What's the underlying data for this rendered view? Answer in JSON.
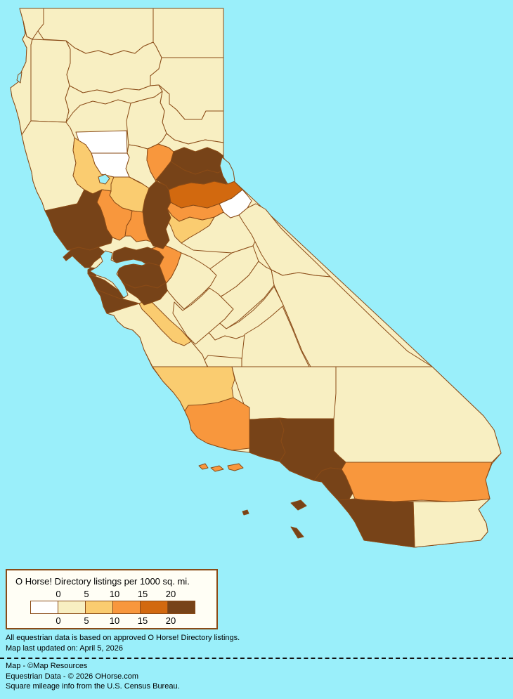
{
  "page": {
    "background": "#9AEFFA"
  },
  "legend": {
    "title": "O Horse! Directory listings per 1000 sq. mi.",
    "breaks": [
      "0",
      "5",
      "10",
      "15",
      "20"
    ],
    "colors": [
      "#FFFFFF",
      "#F8EFC2",
      "#FACC70",
      "#F8973D",
      "#D2690F",
      "#774318"
    ],
    "border_color": "#8A4B17"
  },
  "map": {
    "ocean_color": "#9AEFFA",
    "line_color": "#8A4B17",
    "base_fill": "#F8EFC2",
    "counties": [
      {
        "id": "del-norte",
        "name": "Del Norte",
        "level": 1
      },
      {
        "id": "siskiyou",
        "name": "Siskiyou",
        "level": 1
      },
      {
        "id": "modoc",
        "name": "Modoc",
        "level": 1
      },
      {
        "id": "humboldt",
        "name": "Humboldt",
        "level": 1
      },
      {
        "id": "trinity",
        "name": "Trinity",
        "level": 1
      },
      {
        "id": "shasta",
        "name": "Shasta",
        "level": 1
      },
      {
        "id": "lassen",
        "name": "Lassen",
        "level": 1
      },
      {
        "id": "tehama",
        "name": "Tehama",
        "level": 1
      },
      {
        "id": "plumas",
        "name": "Plumas",
        "level": 1
      },
      {
        "id": "butte",
        "name": "Butte",
        "level": 1
      },
      {
        "id": "mendocino",
        "name": "Mendocino",
        "level": 1
      },
      {
        "id": "sutter",
        "name": "Sutter",
        "level": 1
      },
      {
        "id": "sierra",
        "name": "Sierra",
        "level": 1
      },
      {
        "id": "tuolumne",
        "name": "Tuolumne",
        "level": 1
      },
      {
        "id": "mono",
        "name": "Mono",
        "level": 1
      },
      {
        "id": "inyo",
        "name": "Inyo",
        "level": 1
      },
      {
        "id": "mariposa",
        "name": "Mariposa",
        "level": 1
      },
      {
        "id": "madera",
        "name": "Madera",
        "level": 1
      },
      {
        "id": "fresno",
        "name": "Fresno",
        "level": 1
      },
      {
        "id": "kings",
        "name": "Kings",
        "level": 1
      },
      {
        "id": "tulare",
        "name": "Tulare",
        "level": 1
      },
      {
        "id": "kern",
        "name": "Kern",
        "level": 1
      },
      {
        "id": "san-bernardino",
        "name": "San Bernardino",
        "level": 1
      },
      {
        "id": "monterey",
        "name": "Monterey",
        "level": 1
      },
      {
        "id": "imperial",
        "name": "Imperial",
        "level": 1
      },
      {
        "id": "stanislaus",
        "name": "Stanislaus",
        "level": 1
      },
      {
        "id": "merced",
        "name": "Merced",
        "level": 1
      },
      {
        "id": "glenn",
        "name": "Glenn",
        "level": 0
      },
      {
        "id": "colusa",
        "name": "Colusa",
        "level": 0
      },
      {
        "id": "alpine",
        "name": "Alpine",
        "level": 0
      },
      {
        "id": "lake",
        "name": "Lake",
        "level": 2
      },
      {
        "id": "yolo",
        "name": "Yolo",
        "level": 2
      },
      {
        "id": "calaveras",
        "name": "Calaveras",
        "level": 2
      },
      {
        "id": "san-benito",
        "name": "San Benito",
        "level": 2
      },
      {
        "id": "san-luis-obispo",
        "name": "San Luis Obispo",
        "level": 2
      },
      {
        "id": "yuba",
        "name": "Yuba",
        "level": 3
      },
      {
        "id": "napa",
        "name": "Napa",
        "level": 3
      },
      {
        "id": "solano",
        "name": "Solano",
        "level": 3
      },
      {
        "id": "san-joaquin",
        "name": "San Joaquin",
        "level": 3
      },
      {
        "id": "amador",
        "name": "Amador",
        "level": 3
      },
      {
        "id": "santa-barbara",
        "name": "Santa Barbara",
        "level": 3
      },
      {
        "id": "riverside",
        "name": "Riverside",
        "level": 3
      },
      {
        "id": "el-dorado",
        "name": "El Dorado",
        "level": 4
      },
      {
        "id": "nevada",
        "name": "Nevada",
        "level": 5
      },
      {
        "id": "placer",
        "name": "Placer",
        "level": 5
      },
      {
        "id": "sacramento",
        "name": "Sacramento",
        "level": 5
      },
      {
        "id": "sonoma",
        "name": "Sonoma",
        "level": 5
      },
      {
        "id": "marin",
        "name": "Marin",
        "level": 5
      },
      {
        "id": "san-francisco",
        "name": "San Francisco",
        "level": 5
      },
      {
        "id": "san-mateo",
        "name": "San Mateo",
        "level": 5
      },
      {
        "id": "contra-costa",
        "name": "Contra Costa",
        "level": 5
      },
      {
        "id": "alameda",
        "name": "Alameda",
        "level": 5
      },
      {
        "id": "santa-clara",
        "name": "Santa Clara",
        "level": 5
      },
      {
        "id": "santa-cruz",
        "name": "Santa Cruz",
        "level": 5
      },
      {
        "id": "ventura",
        "name": "Ventura",
        "level": 5
      },
      {
        "id": "los-angeles",
        "name": "Los Angeles",
        "level": 5
      },
      {
        "id": "orange",
        "name": "Orange",
        "level": 5
      },
      {
        "id": "san-diego",
        "name": "San Diego",
        "level": 5
      }
    ],
    "islands": [
      {
        "id": "san-miguel-island",
        "name": "San Miguel Island",
        "level": 3
      },
      {
        "id": "santa-rosa-island",
        "name": "Santa Rosa Island",
        "level": 3
      },
      {
        "id": "santa-cruz-island",
        "name": "Santa Cruz Island",
        "level": 3
      },
      {
        "id": "santa-catalina-island",
        "name": "Santa Catalina Island",
        "level": 5
      },
      {
        "id": "santa-barbara-island",
        "name": "Santa Barbara Island",
        "level": 5
      },
      {
        "id": "san-clemente-island",
        "name": "San Clemente Island",
        "level": 5
      }
    ]
  },
  "credits": {
    "line1": "All equestrian data is based on approved O Horse! Directory listings.",
    "line2": "Map last updated on: April 5, 2026",
    "line3": "Map - ©Map Resources",
    "line4": "Equestrian Data - © 2026 OHorse.com",
    "line5": "Square mileage info from the U.S. Census Bureau."
  }
}
